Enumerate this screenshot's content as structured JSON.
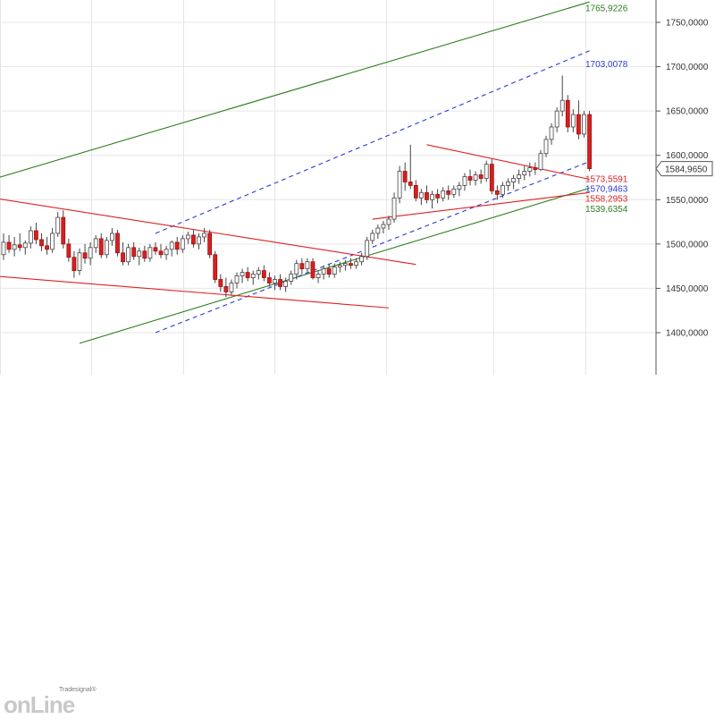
{
  "chart_data": {
    "type": "candlestick",
    "title": "",
    "ylim": [
      1380,
      1765
    ],
    "y_ticks": [
      1400,
      1450,
      1500,
      1550,
      1600,
      1650,
      1700,
      1750
    ],
    "y_tick_labels": [
      "1400,0000",
      "1450,0000",
      "1500,0000",
      "1550,0000",
      "1600,0000",
      "1650,0000",
      "1700,0000",
      "1750,0000"
    ],
    "grid": true,
    "last_price": {
      "value": 1584.965,
      "label": "1584,9650",
      "color": "#555555"
    },
    "levels": [
      {
        "label": "1765,9226",
        "value": 1765.9226,
        "color": "#2e7d1e"
      },
      {
        "label": "1703,0078",
        "value": 1703.0078,
        "color": "#2a3bd4"
      },
      {
        "label": "1573,5591",
        "value": 1573.5591,
        "color": "#e02020"
      },
      {
        "label": "1570,9463",
        "value": 1570.9463,
        "color": "#2a3bd4"
      },
      {
        "label": "1558,2953",
        "value": 1558.2953,
        "color": "#e02020"
      },
      {
        "label": "1539,6354",
        "value": 1539.6354,
        "color": "#2e7d1e"
      }
    ],
    "candles": [
      {
        "o": 1488,
        "h": 1512,
        "l": 1482,
        "c": 1502
      },
      {
        "o": 1502,
        "h": 1510,
        "l": 1490,
        "c": 1494
      },
      {
        "o": 1494,
        "h": 1508,
        "l": 1486,
        "c": 1499
      },
      {
        "o": 1499,
        "h": 1512,
        "l": 1492,
        "c": 1496
      },
      {
        "o": 1496,
        "h": 1504,
        "l": 1488,
        "c": 1501
      },
      {
        "o": 1501,
        "h": 1520,
        "l": 1495,
        "c": 1515
      },
      {
        "o": 1515,
        "h": 1524,
        "l": 1500,
        "c": 1505
      },
      {
        "o": 1505,
        "h": 1512,
        "l": 1492,
        "c": 1498
      },
      {
        "o": 1498,
        "h": 1508,
        "l": 1488,
        "c": 1494
      },
      {
        "o": 1494,
        "h": 1518,
        "l": 1490,
        "c": 1512
      },
      {
        "o": 1512,
        "h": 1536,
        "l": 1508,
        "c": 1530
      },
      {
        "o": 1530,
        "h": 1538,
        "l": 1495,
        "c": 1500
      },
      {
        "o": 1500,
        "h": 1506,
        "l": 1480,
        "c": 1485
      },
      {
        "o": 1485,
        "h": 1492,
        "l": 1462,
        "c": 1470
      },
      {
        "o": 1470,
        "h": 1495,
        "l": 1465,
        "c": 1490
      },
      {
        "o": 1490,
        "h": 1500,
        "l": 1478,
        "c": 1484
      },
      {
        "o": 1484,
        "h": 1502,
        "l": 1476,
        "c": 1496
      },
      {
        "o": 1496,
        "h": 1510,
        "l": 1490,
        "c": 1506
      },
      {
        "o": 1506,
        "h": 1512,
        "l": 1484,
        "c": 1488
      },
      {
        "o": 1488,
        "h": 1508,
        "l": 1484,
        "c": 1504
      },
      {
        "o": 1504,
        "h": 1518,
        "l": 1498,
        "c": 1512
      },
      {
        "o": 1512,
        "h": 1516,
        "l": 1486,
        "c": 1490
      },
      {
        "o": 1490,
        "h": 1502,
        "l": 1476,
        "c": 1480
      },
      {
        "o": 1480,
        "h": 1500,
        "l": 1476,
        "c": 1496
      },
      {
        "o": 1496,
        "h": 1502,
        "l": 1482,
        "c": 1486
      },
      {
        "o": 1486,
        "h": 1496,
        "l": 1476,
        "c": 1492
      },
      {
        "o": 1492,
        "h": 1498,
        "l": 1480,
        "c": 1484
      },
      {
        "o": 1484,
        "h": 1500,
        "l": 1480,
        "c": 1496
      },
      {
        "o": 1496,
        "h": 1502,
        "l": 1488,
        "c": 1492
      },
      {
        "o": 1492,
        "h": 1500,
        "l": 1484,
        "c": 1488
      },
      {
        "o": 1488,
        "h": 1498,
        "l": 1482,
        "c": 1494
      },
      {
        "o": 1494,
        "h": 1504,
        "l": 1486,
        "c": 1502
      },
      {
        "o": 1502,
        "h": 1508,
        "l": 1488,
        "c": 1494
      },
      {
        "o": 1494,
        "h": 1510,
        "l": 1490,
        "c": 1506
      },
      {
        "o": 1506,
        "h": 1514,
        "l": 1500,
        "c": 1510
      },
      {
        "o": 1510,
        "h": 1516,
        "l": 1496,
        "c": 1500
      },
      {
        "o": 1500,
        "h": 1512,
        "l": 1494,
        "c": 1508
      },
      {
        "o": 1508,
        "h": 1518,
        "l": 1502,
        "c": 1512
      },
      {
        "o": 1512,
        "h": 1516,
        "l": 1484,
        "c": 1488
      },
      {
        "o": 1488,
        "h": 1492,
        "l": 1456,
        "c": 1460
      },
      {
        "o": 1460,
        "h": 1466,
        "l": 1446,
        "c": 1452
      },
      {
        "o": 1452,
        "h": 1462,
        "l": 1440,
        "c": 1446
      },
      {
        "o": 1446,
        "h": 1460,
        "l": 1442,
        "c": 1456
      },
      {
        "o": 1456,
        "h": 1468,
        "l": 1450,
        "c": 1464
      },
      {
        "o": 1464,
        "h": 1472,
        "l": 1456,
        "c": 1468
      },
      {
        "o": 1468,
        "h": 1474,
        "l": 1458,
        "c": 1462
      },
      {
        "o": 1462,
        "h": 1470,
        "l": 1454,
        "c": 1466
      },
      {
        "o": 1466,
        "h": 1474,
        "l": 1460,
        "c": 1470
      },
      {
        "o": 1470,
        "h": 1476,
        "l": 1458,
        "c": 1462
      },
      {
        "o": 1462,
        "h": 1468,
        "l": 1452,
        "c": 1456
      },
      {
        "o": 1456,
        "h": 1464,
        "l": 1448,
        "c": 1460
      },
      {
        "o": 1460,
        "h": 1466,
        "l": 1448,
        "c": 1452
      },
      {
        "o": 1452,
        "h": 1462,
        "l": 1446,
        "c": 1458
      },
      {
        "o": 1458,
        "h": 1470,
        "l": 1454,
        "c": 1466
      },
      {
        "o": 1466,
        "h": 1482,
        "l": 1460,
        "c": 1478
      },
      {
        "o": 1478,
        "h": 1484,
        "l": 1466,
        "c": 1472
      },
      {
        "o": 1472,
        "h": 1484,
        "l": 1468,
        "c": 1480
      },
      {
        "o": 1480,
        "h": 1484,
        "l": 1460,
        "c": 1462
      },
      {
        "o": 1462,
        "h": 1470,
        "l": 1456,
        "c": 1466
      },
      {
        "o": 1466,
        "h": 1476,
        "l": 1460,
        "c": 1472
      },
      {
        "o": 1472,
        "h": 1478,
        "l": 1462,
        "c": 1466
      },
      {
        "o": 1466,
        "h": 1478,
        "l": 1462,
        "c": 1474
      },
      {
        "o": 1474,
        "h": 1480,
        "l": 1468,
        "c": 1476
      },
      {
        "o": 1476,
        "h": 1482,
        "l": 1470,
        "c": 1478
      },
      {
        "o": 1478,
        "h": 1484,
        "l": 1472,
        "c": 1476
      },
      {
        "o": 1476,
        "h": 1484,
        "l": 1472,
        "c": 1480
      },
      {
        "o": 1480,
        "h": 1490,
        "l": 1476,
        "c": 1486
      },
      {
        "o": 1486,
        "h": 1508,
        "l": 1482,
        "c": 1504
      },
      {
        "o": 1504,
        "h": 1516,
        "l": 1500,
        "c": 1512
      },
      {
        "o": 1512,
        "h": 1522,
        "l": 1506,
        "c": 1518
      },
      {
        "o": 1518,
        "h": 1526,
        "l": 1512,
        "c": 1522
      },
      {
        "o": 1522,
        "h": 1532,
        "l": 1516,
        "c": 1528
      },
      {
        "o": 1528,
        "h": 1558,
        "l": 1524,
        "c": 1552
      },
      {
        "o": 1552,
        "h": 1588,
        "l": 1546,
        "c": 1582
      },
      {
        "o": 1582,
        "h": 1592,
        "l": 1560,
        "c": 1570
      },
      {
        "o": 1570,
        "h": 1612,
        "l": 1562,
        "c": 1566
      },
      {
        "o": 1566,
        "h": 1572,
        "l": 1548,
        "c": 1552
      },
      {
        "o": 1552,
        "h": 1562,
        "l": 1544,
        "c": 1558
      },
      {
        "o": 1558,
        "h": 1566,
        "l": 1546,
        "c": 1550
      },
      {
        "o": 1550,
        "h": 1560,
        "l": 1540,
        "c": 1556
      },
      {
        "o": 1556,
        "h": 1562,
        "l": 1546,
        "c": 1552
      },
      {
        "o": 1552,
        "h": 1564,
        "l": 1548,
        "c": 1560
      },
      {
        "o": 1560,
        "h": 1566,
        "l": 1550,
        "c": 1556
      },
      {
        "o": 1556,
        "h": 1566,
        "l": 1552,
        "c": 1562
      },
      {
        "o": 1562,
        "h": 1570,
        "l": 1554,
        "c": 1566
      },
      {
        "o": 1566,
        "h": 1580,
        "l": 1560,
        "c": 1576
      },
      {
        "o": 1576,
        "h": 1584,
        "l": 1566,
        "c": 1572
      },
      {
        "o": 1572,
        "h": 1582,
        "l": 1566,
        "c": 1578
      },
      {
        "o": 1578,
        "h": 1584,
        "l": 1568,
        "c": 1574
      },
      {
        "o": 1574,
        "h": 1594,
        "l": 1570,
        "c": 1590
      },
      {
        "o": 1590,
        "h": 1596,
        "l": 1556,
        "c": 1560
      },
      {
        "o": 1560,
        "h": 1566,
        "l": 1550,
        "c": 1556
      },
      {
        "o": 1556,
        "h": 1570,
        "l": 1552,
        "c": 1566
      },
      {
        "o": 1566,
        "h": 1574,
        "l": 1560,
        "c": 1570
      },
      {
        "o": 1570,
        "h": 1578,
        "l": 1562,
        "c": 1574
      },
      {
        "o": 1574,
        "h": 1584,
        "l": 1568,
        "c": 1578
      },
      {
        "o": 1578,
        "h": 1588,
        "l": 1572,
        "c": 1582
      },
      {
        "o": 1582,
        "h": 1592,
        "l": 1576,
        "c": 1586
      },
      {
        "o": 1586,
        "h": 1592,
        "l": 1578,
        "c": 1584
      },
      {
        "o": 1584,
        "h": 1606,
        "l": 1582,
        "c": 1602
      },
      {
        "o": 1602,
        "h": 1622,
        "l": 1598,
        "c": 1618
      },
      {
        "o": 1618,
        "h": 1636,
        "l": 1612,
        "c": 1632
      },
      {
        "o": 1632,
        "h": 1654,
        "l": 1626,
        "c": 1650
      },
      {
        "o": 1650,
        "h": 1690,
        "l": 1644,
        "c": 1662
      },
      {
        "o": 1662,
        "h": 1668,
        "l": 1626,
        "c": 1632
      },
      {
        "o": 1632,
        "h": 1652,
        "l": 1626,
        "c": 1646
      },
      {
        "o": 1646,
        "h": 1662,
        "l": 1618,
        "c": 1624
      },
      {
        "o": 1624,
        "h": 1650,
        "l": 1620,
        "c": 1646
      },
      {
        "o": 1646,
        "h": 1650,
        "l": 1582,
        "c": 1585
      }
    ],
    "trendlines": [
      {
        "name": "",
        "color": "#2e7d1e",
        "dash": false,
        "points": [
          [
            -2,
            1573
          ],
          [
            108,
            1773
          ]
        ]
      },
      {
        "name": "",
        "color": "#2e7d1e",
        "dash": false,
        "points": [
          [
            14,
            1388
          ],
          [
            108,
            1563
          ]
        ]
      },
      {
        "name": "",
        "color": "#2a3bd4",
        "dash": true,
        "points": [
          [
            28,
            1400
          ],
          [
            108,
            1593
          ]
        ]
      },
      {
        "name": "",
        "color": "#2a3bd4",
        "dash": true,
        "points": [
          [
            28,
            1512
          ],
          [
            108,
            1718
          ]
        ]
      },
      {
        "name": "",
        "color": "#e02020",
        "dash": false,
        "points": [
          [
            -2,
            1552
          ],
          [
            76,
            1477
          ]
        ]
      },
      {
        "name": "",
        "color": "#e02020",
        "dash": false,
        "points": [
          [
            -2,
            1464
          ],
          [
            71,
            1428
          ]
        ]
      },
      {
        "name": "",
        "color": "#e02020",
        "dash": false,
        "points": [
          [
            78,
            1612
          ],
          [
            108,
            1573
          ]
        ]
      },
      {
        "name": "",
        "color": "#e02020",
        "dash": false,
        "points": [
          [
            68,
            1528
          ],
          [
            108,
            1558
          ]
        ]
      }
    ]
  },
  "logo": {
    "small": "Tradesignal®",
    "big": "onLine"
  }
}
